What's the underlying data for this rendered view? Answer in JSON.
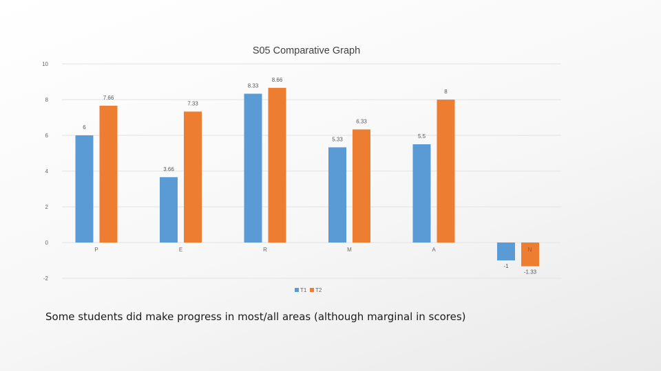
{
  "chart_data": {
    "type": "bar",
    "title": "S05 Comparative Graph",
    "categories": [
      "P",
      "E",
      "R",
      "M",
      "A",
      "N"
    ],
    "series": [
      {
        "name": "T1",
        "values": [
          6,
          3.66,
          8.33,
          5.33,
          5.5,
          -1
        ],
        "labels": [
          "6",
          "3.66",
          "8.33",
          "5.33",
          "5.5",
          "-1"
        ],
        "color": "#5b9bd5"
      },
      {
        "name": "T2",
        "values": [
          7.66,
          7.33,
          8.66,
          6.33,
          8,
          -1.33
        ],
        "labels": [
          "7.66",
          "7.33",
          "8.66",
          "6.33",
          "8",
          "-1.33"
        ],
        "color": "#ed7d31"
      }
    ],
    "ylim": [
      -2,
      10
    ],
    "yticks": [
      "-2",
      "0",
      "2",
      "4",
      "6",
      "8",
      "10"
    ],
    "grid": true,
    "legend": "bottom",
    "xlabel": "",
    "ylabel": ""
  },
  "caption": "Some students did make progress in most/all areas (although marginal in scores)"
}
